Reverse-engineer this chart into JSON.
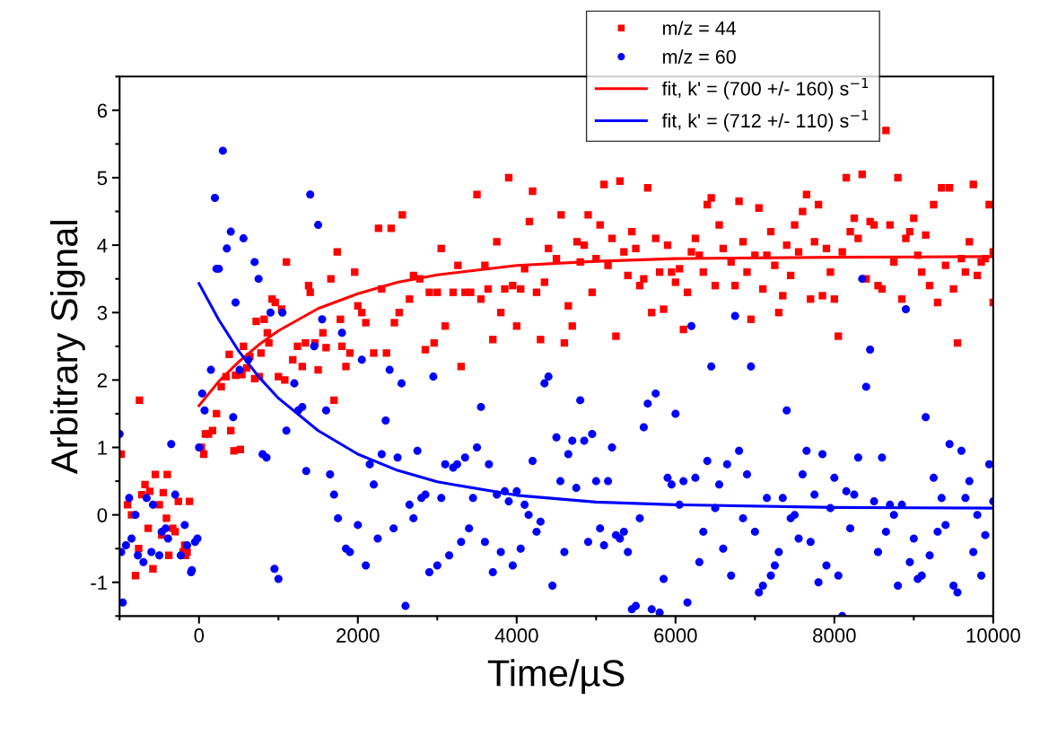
{
  "chart_data": {
    "type": "scatter",
    "xlabel": "Time/µS",
    "ylabel": "Arbitrary Signal",
    "xlim": [
      -1000,
      10000
    ],
    "ylim": [
      -1.5,
      6.5
    ],
    "xticks": [
      0,
      2000,
      4000,
      6000,
      8000,
      10000
    ],
    "yticks": [
      -1,
      0,
      1,
      2,
      3,
      4,
      5,
      6
    ],
    "grid": false,
    "legend": "top right",
    "series": [
      {
        "name": "m/z = 44",
        "marker": "square",
        "color": "#ff0000",
        "x": [
          -980,
          -900,
          -850,
          -800,
          -750,
          -760,
          -720,
          -680,
          -640,
          -620,
          -580,
          -550,
          -500,
          -470,
          -450,
          -410,
          -400,
          -380,
          -330,
          -300,
          -260,
          -200,
          -180,
          -170,
          -150,
          -120,
          60,
          30,
          80,
          120,
          170,
          220,
          280,
          340,
          380,
          400,
          440,
          460,
          520,
          540,
          560,
          600,
          640,
          700,
          720,
          760,
          780,
          820,
          860,
          880,
          920,
          960,
          1000,
          1040,
          1080,
          1100,
          1180,
          1240,
          1300,
          1340,
          1380,
          1400,
          1460,
          1500,
          1560,
          1600,
          1660,
          1700,
          1740,
          1780,
          1800,
          1850,
          1900,
          1960,
          2000,
          2050,
          2100,
          2200,
          2260,
          2300,
          2360,
          2420,
          2460,
          2520,
          2560,
          2650,
          2700,
          2780,
          2850,
          2900,
          2960,
          3000,
          3050,
          3100,
          3200,
          3260,
          3300,
          3350,
          3420,
          3500,
          3550,
          3600,
          3640,
          3700,
          3750,
          3800,
          3850,
          3900,
          3950,
          4000,
          4050,
          4100,
          4160,
          4200,
          4250,
          4300,
          4350,
          4400,
          4500,
          4560,
          4600,
          4650,
          4700,
          4760,
          4800,
          4850,
          4900,
          4950,
          5000,
          5050,
          5100,
          5150,
          5200,
          5250,
          5300,
          5350,
          5400,
          5450,
          5500,
          5550,
          5600,
          5650,
          5700,
          5750,
          5800,
          5850,
          5900,
          5950,
          6000,
          6050,
          6100,
          6150,
          6200,
          6250,
          6300,
          6350,
          6400,
          6450,
          6500,
          6550,
          6600,
          6700,
          6750,
          6800,
          6850,
          6900,
          6950,
          7000,
          7050,
          7100,
          7150,
          7200,
          7250,
          7300,
          7350,
          7400,
          7450,
          7500,
          7550,
          7600,
          7650,
          7700,
          7750,
          7800,
          7850,
          7900,
          7950,
          8000,
          8050,
          8100,
          8150,
          8200,
          8250,
          8300,
          8350,
          8400,
          8450,
          8500,
          8550,
          8600,
          8650,
          8700,
          8750,
          8800,
          8850,
          8900,
          8950,
          9000,
          9050,
          9100,
          9150,
          9200,
          9250,
          9300,
          9350,
          9400,
          9450,
          9500,
          9550,
          9600,
          9650,
          9700,
          9750,
          9800,
          9850,
          9900,
          9950,
          10000,
          10000
        ],
        "values": [
          0.9,
          0.15,
          0.0,
          -0.9,
          1.7,
          -0.5,
          0.3,
          0.45,
          -0.2,
          0.35,
          -0.8,
          0.6,
          0.15,
          -0.3,
          0.33,
          -0.05,
          0.6,
          -0.6,
          -0.2,
          -0.25,
          0.2,
          -0.55,
          -0.45,
          -0.6,
          -0.55,
          0.2,
          0.9,
          1.0,
          1.2,
          1.2,
          1.25,
          1.5,
          1.9,
          2.05,
          2.38,
          1.25,
          0.95,
          2.07,
          0.97,
          2.08,
          2.5,
          2.18,
          2.35,
          2.02,
          2.87,
          2.05,
          2.4,
          2.9,
          2.7,
          2.55,
          3.2,
          3.15,
          2.05,
          3.05,
          2.0,
          3.75,
          2.3,
          2.5,
          2.2,
          2.55,
          3.4,
          3.3,
          2.55,
          2.15,
          2.7,
          2.48,
          3.5,
          1.7,
          3.9,
          2.9,
          2.5,
          2.2,
          2.4,
          3.6,
          3.1,
          3.0,
          2.85,
          2.4,
          4.25,
          3.35,
          2.4,
          4.25,
          2.85,
          3.0,
          4.45,
          3.2,
          3.55,
          3.5,
          2.45,
          3.3,
          2.55,
          3.3,
          3.95,
          2.8,
          3.3,
          3.7,
          2.2,
          3.3,
          3.3,
          4.75,
          3.2,
          3.7,
          3.35,
          2.6,
          4.05,
          3.0,
          3.35,
          5.0,
          3.4,
          2.8,
          3.35,
          3.65,
          4.35,
          4.8,
          3.3,
          2.6,
          3.45,
          3.95,
          3.8,
          4.45,
          2.55,
          3.1,
          2.8,
          4.05,
          3.75,
          4.0,
          4.45,
          3.3,
          3.8,
          4.3,
          4.9,
          3.7,
          4.1,
          2.65,
          4.95,
          3.9,
          3.55,
          4.2,
          3.95,
          3.4,
          3.5,
          4.85,
          3.0,
          4.1,
          3.6,
          3.05,
          4.0,
          3.6,
          3.45,
          3.65,
          2.75,
          3.3,
          3.9,
          4.1,
          3.85,
          3.6,
          4.6,
          4.7,
          3.4,
          4.3,
          3.95,
          3.75,
          3.4,
          4.65,
          4.05,
          3.6,
          2.9,
          3.85,
          4.55,
          3.35,
          3.85,
          4.2,
          3.7,
          3.0,
          3.25,
          4.0,
          3.55,
          4.3,
          3.9,
          4.5,
          4.75,
          3.2,
          4.05,
          4.6,
          3.25,
          3.95,
          3.6,
          3.2,
          2.65,
          3.9,
          5.0,
          4.2,
          4.4,
          4.1,
          5.05,
          3.5,
          4.35,
          4.3,
          3.4,
          3.35,
          5.7,
          4.3,
          3.75,
          5.0,
          3.2,
          4.1,
          4.2,
          4.4,
          3.85,
          3.6,
          4.15,
          3.4,
          4.6,
          3.15,
          4.85,
          3.7,
          4.85,
          3.35,
          2.55,
          3.8,
          3.6,
          4.05,
          4.9,
          3.55,
          3.75,
          3.8,
          4.6,
          3.9,
          3.15
        ]
      },
      {
        "name": "m/z = 60",
        "marker": "circle",
        "color": "#0000ff",
        "x": [
          -1000,
          -980,
          -960,
          -920,
          -880,
          -850,
          -800,
          -770,
          -700,
          -660,
          -600,
          -580,
          -500,
          -470,
          -420,
          -390,
          -350,
          -300,
          -230,
          -180,
          -150,
          -100,
          -90,
          -50,
          -20,
          0,
          40,
          70,
          150,
          200,
          220,
          250,
          300,
          350,
          400,
          430,
          460,
          510,
          560,
          620,
          700,
          750,
          800,
          850,
          900,
          950,
          1000,
          1050,
          1100,
          1200,
          1250,
          1300,
          1350,
          1400,
          1450,
          1500,
          1550,
          1600,
          1650,
          1700,
          1750,
          1800,
          1850,
          1900,
          2000,
          2050,
          2100,
          2150,
          2200,
          2250,
          2300,
          2350,
          2400,
          2450,
          2500,
          2550,
          2600,
          2650,
          2700,
          2750,
          2800,
          2850,
          2900,
          2950,
          3000,
          3050,
          3100,
          3150,
          3200,
          3250,
          3300,
          3350,
          3400,
          3450,
          3500,
          3550,
          3600,
          3650,
          3700,
          3750,
          3800,
          3850,
          3900,
          3950,
          4000,
          4050,
          4100,
          4150,
          4200,
          4250,
          4300,
          4350,
          4400,
          4450,
          4500,
          4550,
          4600,
          4650,
          4700,
          4750,
          4800,
          4850,
          4900,
          4950,
          5000,
          5050,
          5100,
          5150,
          5200,
          5250,
          5300,
          5350,
          5400,
          5450,
          5500,
          5550,
          5600,
          5650,
          5700,
          5750,
          5800,
          5850,
          5900,
          5950,
          6000,
          6050,
          6100,
          6150,
          6200,
          6250,
          6300,
          6350,
          6400,
          6450,
          6500,
          6550,
          6600,
          6650,
          6700,
          6750,
          6800,
          6850,
          6900,
          6950,
          7000,
          7050,
          7100,
          7150,
          7200,
          7250,
          7300,
          7350,
          7400,
          7450,
          7500,
          7550,
          7600,
          7650,
          7700,
          7750,
          7800,
          7850,
          7900,
          7950,
          8000,
          8050,
          8100,
          8150,
          8200,
          8250,
          8300,
          8350,
          8400,
          8450,
          8500,
          8550,
          8600,
          8650,
          8700,
          8750,
          8800,
          8850,
          8900,
          8950,
          9000,
          9050,
          9100,
          9150,
          9200,
          9250,
          9300,
          9350,
          9400,
          9450,
          9500,
          9550,
          9600,
          9650,
          9700,
          9750,
          9800,
          9850,
          9900,
          9950,
          10000
        ],
        "values": [
          1.2,
          -0.55,
          -1.3,
          -0.45,
          0.25,
          -0.35,
          0.0,
          -0.6,
          -0.7,
          0.25,
          -0.55,
          0.15,
          -0.6,
          -0.25,
          -0.2,
          -0.35,
          1.05,
          0.3,
          -0.6,
          -0.15,
          -0.45,
          -0.85,
          -0.82,
          -0.4,
          -0.35,
          1.0,
          1.8,
          1.55,
          2.15,
          4.7,
          3.65,
          3.65,
          5.4,
          3.95,
          4.2,
          1.45,
          3.15,
          2.15,
          4.1,
          2.3,
          3.75,
          3.5,
          0.9,
          0.85,
          3.0,
          -0.8,
          -0.95,
          3.0,
          1.25,
          1.95,
          1.55,
          1.6,
          0.65,
          4.75,
          2.5,
          4.3,
          2.9,
          1.55,
          0.6,
          0.3,
          -0.05,
          2.7,
          -0.5,
          -0.55,
          -0.15,
          2.3,
          -0.75,
          0.75,
          0.45,
          -0.35,
          0.9,
          1.4,
          2.15,
          -0.2,
          0.85,
          1.95,
          -1.35,
          0.15,
          -0.05,
          0.95,
          0.25,
          0.3,
          -0.85,
          2.05,
          -0.75,
          0.25,
          0.75,
          -0.6,
          0.7,
          0.75,
          -0.4,
          0.85,
          -0.2,
          0.25,
          1.0,
          1.6,
          -0.4,
          0.75,
          -0.85,
          0.3,
          -0.55,
          0.35,
          0.2,
          -0.75,
          0.35,
          -0.5,
          0.15,
          0.0,
          0.8,
          -0.25,
          -0.1,
          1.95,
          2.05,
          -1.05,
          1.15,
          0.5,
          -0.55,
          0.9,
          1.1,
          0.4,
          1.7,
          1.1,
          -0.4,
          1.2,
          0.5,
          -0.2,
          -0.45,
          0.5,
          1.0,
          -0.3,
          -0.35,
          -0.25,
          -0.55,
          -1.4,
          -1.35,
          -0.05,
          1.3,
          1.65,
          -1.4,
          1.8,
          -1.45,
          -0.95,
          0.55,
          0.45,
          1.5,
          0.15,
          0.5,
          -1.3,
          2.8,
          0.55,
          -0.7,
          -0.25,
          0.8,
          2.2,
          0.1,
          0.45,
          -0.5,
          0.75,
          -0.9,
          2.95,
          0.95,
          -0.05,
          0.6,
          2.2,
          -0.25,
          -1.15,
          -1.05,
          0.25,
          -0.9,
          -0.75,
          -0.55,
          0.25,
          1.55,
          -0.05,
          0.0,
          -0.35,
          0.6,
          0.95,
          -0.4,
          0.3,
          -1.0,
          0.9,
          -0.75,
          0.1,
          0.55,
          -0.9,
          -1.5,
          0.35,
          -0.2,
          0.3,
          0.85,
          3.5,
          1.9,
          2.45,
          0.2,
          -0.55,
          0.85,
          -0.25,
          0.15,
          0.0,
          -1.05,
          0.15,
          3.05,
          -0.7,
          -0.35,
          -0.95,
          -0.9,
          1.45,
          -0.6,
          0.55,
          -0.25,
          0.25,
          -0.15,
          1.05,
          -1.05,
          -1.15,
          0.95,
          0.25,
          0.5,
          -0.55,
          0.0,
          -0.9,
          -0.3,
          0.75,
          0.2
        ]
      },
      {
        "name": "fit, k' = (700 +/- 160) s$^{−1}$",
        "type": "line",
        "marker": "none",
        "line_style": "solid",
        "color": "#ff0000",
        "x": [
          0,
          250,
          500,
          750,
          1000,
          1500,
          2000,
          2500,
          3000,
          4000,
          5000,
          6000,
          8000,
          10000
        ],
        "values": [
          1.62,
          1.98,
          2.27,
          2.52,
          2.73,
          3.06,
          3.28,
          3.45,
          3.56,
          3.7,
          3.76,
          3.8,
          3.82,
          3.83
        ]
      },
      {
        "name": "fit, k' = (712 +/- 110) s$^{−1}$",
        "type": "line",
        "marker": "none",
        "line_style": "solid",
        "color": "#0000ff",
        "x": [
          0,
          250,
          500,
          750,
          1000,
          1500,
          2000,
          2500,
          3000,
          4000,
          5000,
          6000,
          8000,
          10000
        ],
        "values": [
          3.43,
          2.89,
          2.43,
          2.05,
          1.73,
          1.25,
          0.9,
          0.66,
          0.49,
          0.29,
          0.19,
          0.15,
          0.11,
          0.1
        ]
      }
    ]
  }
}
